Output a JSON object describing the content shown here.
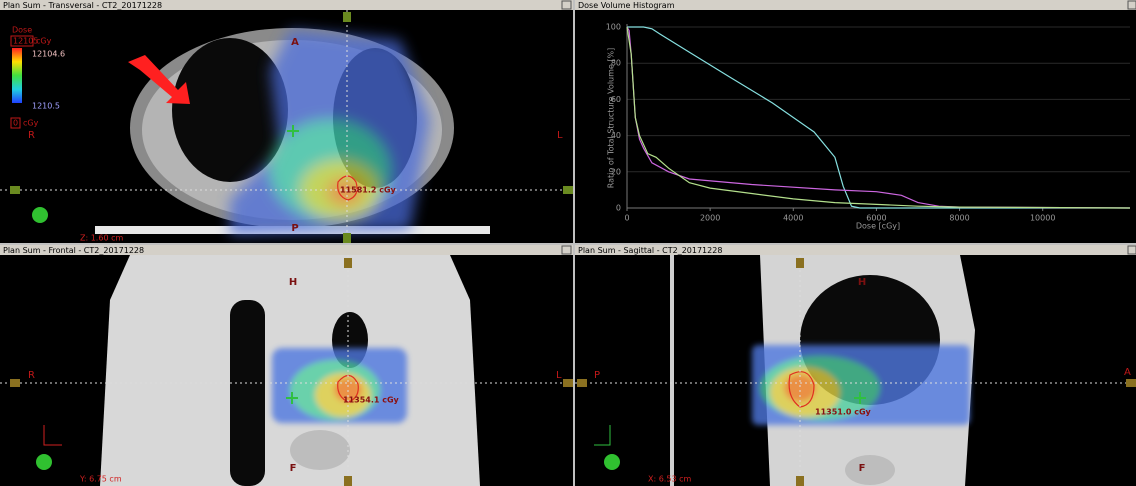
{
  "transversal": {
    "title": "Plan Sum - Transversal - CT2_20171228",
    "dose_label": "Dose",
    "dose_max": "12105",
    "dose_max_unit": "cGy",
    "scale_max": "12104.6",
    "scale_min": "1210.5",
    "dose_min": "0",
    "dose_min_unit": "cGy",
    "orientation": {
      "top": "A",
      "left": "R",
      "right": "L",
      "bottom": "P"
    },
    "point_dose": "11581.2 cGy",
    "position": "Z: 1.60 cm"
  },
  "frontal": {
    "title": "Plan Sum - Frontal - CT2_20171228",
    "orientation": {
      "top": "H",
      "left": "R",
      "right": "L",
      "bottom": "F"
    },
    "point_dose": "11354.1 cGy",
    "position": "Y: 6.75 cm"
  },
  "sagittal": {
    "title": "Plan Sum - Sagittal - CT2_20171228",
    "orientation": {
      "top": "H",
      "left": "P",
      "right": "A",
      "bottom": "F"
    },
    "point_dose": "11351.0 cGy",
    "position": "X: 6.53 cm"
  },
  "chart_data": {
    "type": "line",
    "title": "Dose Volume Histogram",
    "x_label": "Dose [cGy]",
    "y_label": "Ratio of Total Structure Volume [%]",
    "xlim": [
      0,
      12100
    ],
    "ylim": [
      0,
      100
    ],
    "xticks": [
      0,
      2000,
      4000,
      6000,
      8000,
      10000
    ],
    "yticks": [
      0,
      20,
      40,
      60,
      80,
      100
    ],
    "grid": true,
    "series": [
      {
        "color": "#86e0e0",
        "x": [
          0,
          150,
          400,
          600,
          800,
          1500,
          2500,
          3500,
          4500,
          5000,
          5200,
          5400,
          5600,
          12100
        ],
        "values": [
          100,
          100,
          100,
          99,
          96,
          86,
          72,
          58,
          42,
          28,
          12,
          1,
          0,
          0
        ]
      },
      {
        "color": "#cc66e0",
        "x": [
          0,
          50,
          100,
          200,
          300,
          400,
          600,
          1000,
          1500,
          3000,
          5000,
          6000,
          6600,
          7000,
          7500,
          8000,
          12100
        ],
        "values": [
          100,
          98,
          85,
          50,
          38,
          33,
          25,
          20,
          16,
          13,
          10,
          9,
          7,
          3,
          1,
          0.5,
          0
        ]
      },
      {
        "color": "#b4e08c",
        "x": [
          0,
          100,
          200,
          300,
          500,
          700,
          1000,
          1500,
          2000,
          3000,
          4000,
          5000,
          6000,
          7000,
          8000,
          12100
        ],
        "values": [
          100,
          85,
          50,
          40,
          30,
          28,
          22,
          14,
          11,
          8,
          5,
          3,
          2,
          1,
          0.5,
          0
        ]
      }
    ]
  }
}
